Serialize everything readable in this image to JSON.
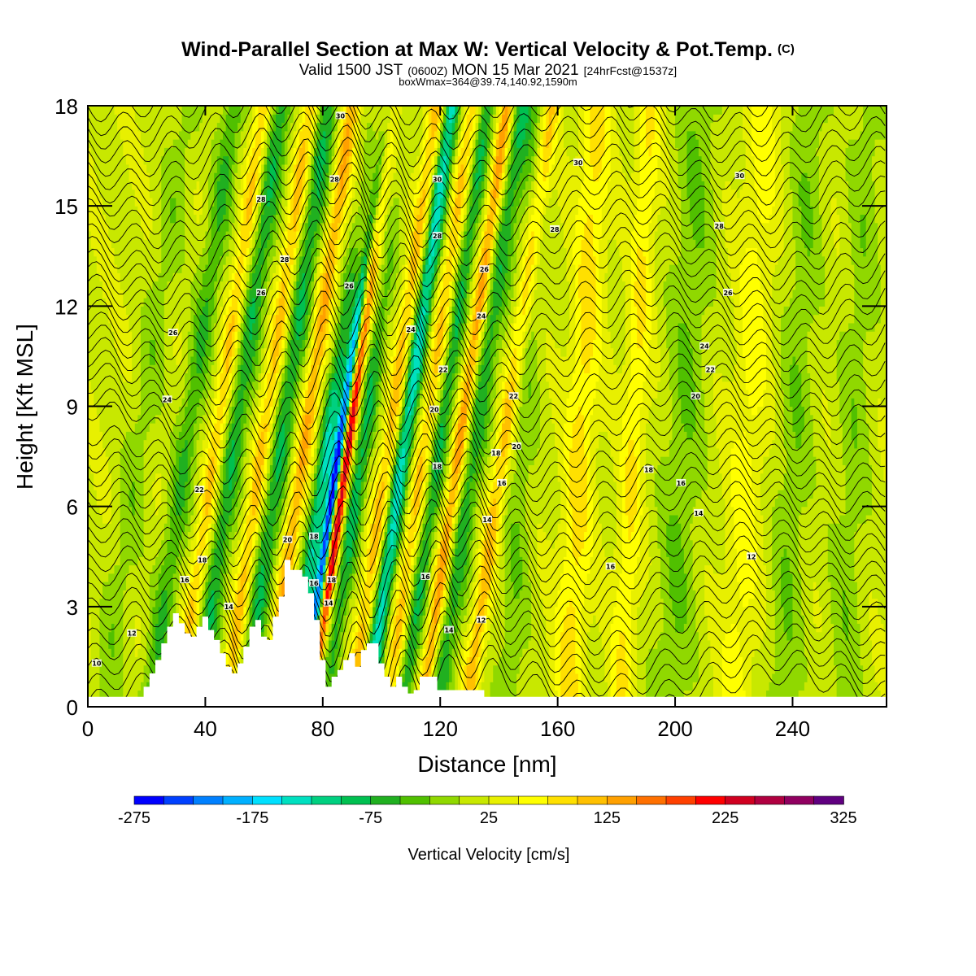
{
  "header": {
    "title": "Wind-Parallel Section at Max W: Vertical Velocity & Pot.Temp.",
    "copyright": "(C)",
    "valid_main": "Valid 1500 JST",
    "valid_zulu": "(0600Z)",
    "valid_date": "MON 15 Mar 2021",
    "forecast": "[24hrFcst@1537z]",
    "box_wmax": "boxWmax=364@39.74,140.92,1590m"
  },
  "colors": {
    "scale": [
      "#0000ff",
      "#0040ff",
      "#0080ff",
      "#00b0ff",
      "#00e0ff",
      "#00e0c0",
      "#00d080",
      "#00c050",
      "#20b020",
      "#50c000",
      "#90d800",
      "#c8e800",
      "#e8f000",
      "#ffff00",
      "#ffe000",
      "#ffc000",
      "#ffa000",
      "#ff7000",
      "#ff4000",
      "#ff0000",
      "#d00020",
      "#b00040",
      "#900060",
      "#600080"
    ],
    "terrain": "#ffffff",
    "contour": "#000000"
  },
  "chart_data": {
    "type": "heatmap",
    "xlabel": "Distance [nm]",
    "ylabel": "Height [Kft MSL]",
    "xlim": [
      0,
      272
    ],
    "ylim": [
      0,
      18
    ],
    "xticks": [
      "0",
      "40",
      "80",
      "120",
      "160",
      "200",
      "240"
    ],
    "yticks": [
      "0",
      "3",
      "6",
      "9",
      "12",
      "15",
      "18"
    ],
    "xtick_values": [
      0,
      40,
      80,
      120,
      160,
      200,
      240
    ],
    "ytick_values": [
      0,
      3,
      6,
      9,
      12,
      15,
      18
    ],
    "colorbar": {
      "label": "Vertical Velocity [cm/s]",
      "min": -275,
      "max": 325,
      "step": 25,
      "tick_labels": [
        "-275",
        "-175",
        "-75",
        "25",
        "125",
        "225",
        "325"
      ],
      "tick_values": [
        -275,
        -175,
        -75,
        25,
        125,
        225,
        325
      ]
    },
    "terrain_profile": {
      "x": [
        0,
        19,
        19,
        21,
        21,
        23,
        23,
        25,
        25,
        27,
        27,
        29,
        29,
        31,
        31,
        33,
        33,
        35,
        35,
        37,
        37,
        39,
        39,
        41,
        41,
        43,
        43,
        45,
        45,
        47,
        47,
        49,
        49,
        51,
        51,
        53,
        53,
        55,
        55,
        57,
        57,
        59,
        59,
        61,
        61,
        63,
        63,
        65,
        65,
        67,
        67,
        69,
        69,
        71,
        71,
        73,
        73,
        75,
        75,
        77,
        77,
        79,
        79,
        81,
        81,
        83,
        83,
        85,
        85,
        87,
        87,
        89,
        89,
        91,
        91,
        93,
        93,
        95,
        95,
        97,
        97,
        99,
        99,
        101,
        101,
        103,
        103,
        105,
        105,
        107,
        107,
        109,
        109,
        111,
        111,
        113,
        113,
        115,
        115,
        117,
        117,
        119,
        119,
        121,
        121,
        135,
        135,
        272
      ],
      "y": [
        0.3,
        0.3,
        0.6,
        0.6,
        1.0,
        1.0,
        1.4,
        1.4,
        1.9,
        1.9,
        2.4,
        2.4,
        2.8,
        2.8,
        2.5,
        2.5,
        2.2,
        2.2,
        2.1,
        2.1,
        2.4,
        2.4,
        2.7,
        2.7,
        2.3,
        2.3,
        2.0,
        2.0,
        1.6,
        1.6,
        1.2,
        1.2,
        1.0,
        1.0,
        1.3,
        1.3,
        1.8,
        1.8,
        2.4,
        2.4,
        2.6,
        2.6,
        2.1,
        2.1,
        2.0,
        2.0,
        2.7,
        2.7,
        3.3,
        3.3,
        4.4,
        4.4,
        4.1,
        4.1,
        4.1,
        4.1,
        3.9,
        3.9,
        3.4,
        3.4,
        2.6,
        2.6,
        1.4,
        1.4,
        0.6,
        0.6,
        0.9,
        0.9,
        1.1,
        1.1,
        1.4,
        1.4,
        1.6,
        1.6,
        1.2,
        1.2,
        1.7,
        1.7,
        1.9,
        1.9,
        1.9,
        1.9,
        1.3,
        1.3,
        0.9,
        0.9,
        0.6,
        0.6,
        0.9,
        0.9,
        0.6,
        0.6,
        0.4,
        0.4,
        0.5,
        0.5,
        0.9,
        0.9,
        0.9,
        0.9,
        0.9,
        0.9,
        0.5,
        0.5,
        0.5,
        0.5,
        0.3,
        0.3
      ]
    },
    "w_features": [
      {
        "x": 10,
        "w": -35,
        "width": 5
      },
      {
        "x": 26,
        "w": -70,
        "width": 4
      },
      {
        "x": 36,
        "w": 85,
        "width": 3
      },
      {
        "x": 42,
        "w": -90,
        "width": 4
      },
      {
        "x": 52,
        "w": 95,
        "width": 3
      },
      {
        "x": 58,
        "w": -95,
        "width": 4
      },
      {
        "x": 66,
        "w": 105,
        "width": 3
      },
      {
        "x": 74,
        "w": -150,
        "width": 3
      },
      {
        "x": 78,
        "w": -270,
        "width": 1.6
      },
      {
        "x": 81,
        "w": 240,
        "width": 1.8
      },
      {
        "x": 86,
        "w": -110,
        "width": 3
      },
      {
        "x": 95,
        "w": 95,
        "width": 3
      },
      {
        "x": 100,
        "w": -160,
        "width": 3
      },
      {
        "x": 107,
        "w": 85,
        "width": 3
      },
      {
        "x": 112,
        "w": -95,
        "width": 3
      },
      {
        "x": 119,
        "w": 130,
        "width": 2.5
      },
      {
        "x": 124,
        "w": -85,
        "width": 4
      },
      {
        "x": 134,
        "w": 95,
        "width": 3
      },
      {
        "x": 145,
        "w": -40,
        "width": 5
      },
      {
        "x": 165,
        "w": 65,
        "width": 5
      },
      {
        "x": 183,
        "w": 55,
        "width": 4
      },
      {
        "x": 200,
        "w": -45,
        "width": 7
      },
      {
        "x": 222,
        "w": 40,
        "width": 6
      },
      {
        "x": 238,
        "w": -40,
        "width": 6
      },
      {
        "x": 258,
        "w": -35,
        "width": 6
      }
    ],
    "theta_contours": {
      "interval": 2,
      "labels": [
        {
          "x": 3,
          "y": 1.3,
          "text": "10"
        },
        {
          "x": 15,
          "y": 2.2,
          "text": "12"
        },
        {
          "x": 48,
          "y": 3.0,
          "text": "14"
        },
        {
          "x": 33,
          "y": 3.8,
          "text": "16"
        },
        {
          "x": 39,
          "y": 4.4,
          "text": "18"
        },
        {
          "x": 68,
          "y": 5.0,
          "text": "20"
        },
        {
          "x": 38,
          "y": 6.5,
          "text": "22"
        },
        {
          "x": 27,
          "y": 9.2,
          "text": "24"
        },
        {
          "x": 29,
          "y": 11.2,
          "text": "26"
        },
        {
          "x": 59,
          "y": 12.4,
          "text": "26"
        },
        {
          "x": 89,
          "y": 12.6,
          "text": "26"
        },
        {
          "x": 67,
          "y": 13.4,
          "text": "28"
        },
        {
          "x": 59,
          "y": 15.2,
          "text": "28"
        },
        {
          "x": 84,
          "y": 15.8,
          "text": "28"
        },
        {
          "x": 86,
          "y": 17.7,
          "text": "30"
        },
        {
          "x": 119,
          "y": 15.8,
          "text": "30"
        },
        {
          "x": 119,
          "y": 14.1,
          "text": "28"
        },
        {
          "x": 135,
          "y": 13.1,
          "text": "26"
        },
        {
          "x": 134,
          "y": 11.7,
          "text": "24"
        },
        {
          "x": 110,
          "y": 11.3,
          "text": "24"
        },
        {
          "x": 121,
          "y": 10.1,
          "text": "22"
        },
        {
          "x": 145,
          "y": 9.3,
          "text": "22"
        },
        {
          "x": 118,
          "y": 8.9,
          "text": "20"
        },
        {
          "x": 146,
          "y": 7.8,
          "text": "20"
        },
        {
          "x": 139,
          "y": 7.6,
          "text": "18"
        },
        {
          "x": 119,
          "y": 7.2,
          "text": "18"
        },
        {
          "x": 141,
          "y": 6.7,
          "text": "16"
        },
        {
          "x": 115,
          "y": 3.9,
          "text": "16"
        },
        {
          "x": 136,
          "y": 5.6,
          "text": "14"
        },
        {
          "x": 134,
          "y": 2.6,
          "text": "12"
        },
        {
          "x": 123,
          "y": 2.3,
          "text": "14"
        },
        {
          "x": 83,
          "y": 3.8,
          "text": "18"
        },
        {
          "x": 77,
          "y": 5.1,
          "text": "18"
        },
        {
          "x": 77,
          "y": 3.7,
          "text": "16"
        },
        {
          "x": 82,
          "y": 3.1,
          "text": "14"
        },
        {
          "x": 167,
          "y": 16.3,
          "text": "30"
        },
        {
          "x": 222,
          "y": 15.9,
          "text": "30"
        },
        {
          "x": 159,
          "y": 14.3,
          "text": "28"
        },
        {
          "x": 215,
          "y": 14.4,
          "text": "28"
        },
        {
          "x": 218,
          "y": 12.4,
          "text": "26"
        },
        {
          "x": 210,
          "y": 10.8,
          "text": "24"
        },
        {
          "x": 212,
          "y": 10.1,
          "text": "22"
        },
        {
          "x": 207,
          "y": 9.3,
          "text": "20"
        },
        {
          "x": 191,
          "y": 7.1,
          "text": "18"
        },
        {
          "x": 202,
          "y": 6.7,
          "text": "16"
        },
        {
          "x": 208,
          "y": 5.8,
          "text": "14"
        },
        {
          "x": 178,
          "y": 4.2,
          "text": "16"
        },
        {
          "x": 226,
          "y": 4.5,
          "text": "12"
        }
      ]
    }
  }
}
